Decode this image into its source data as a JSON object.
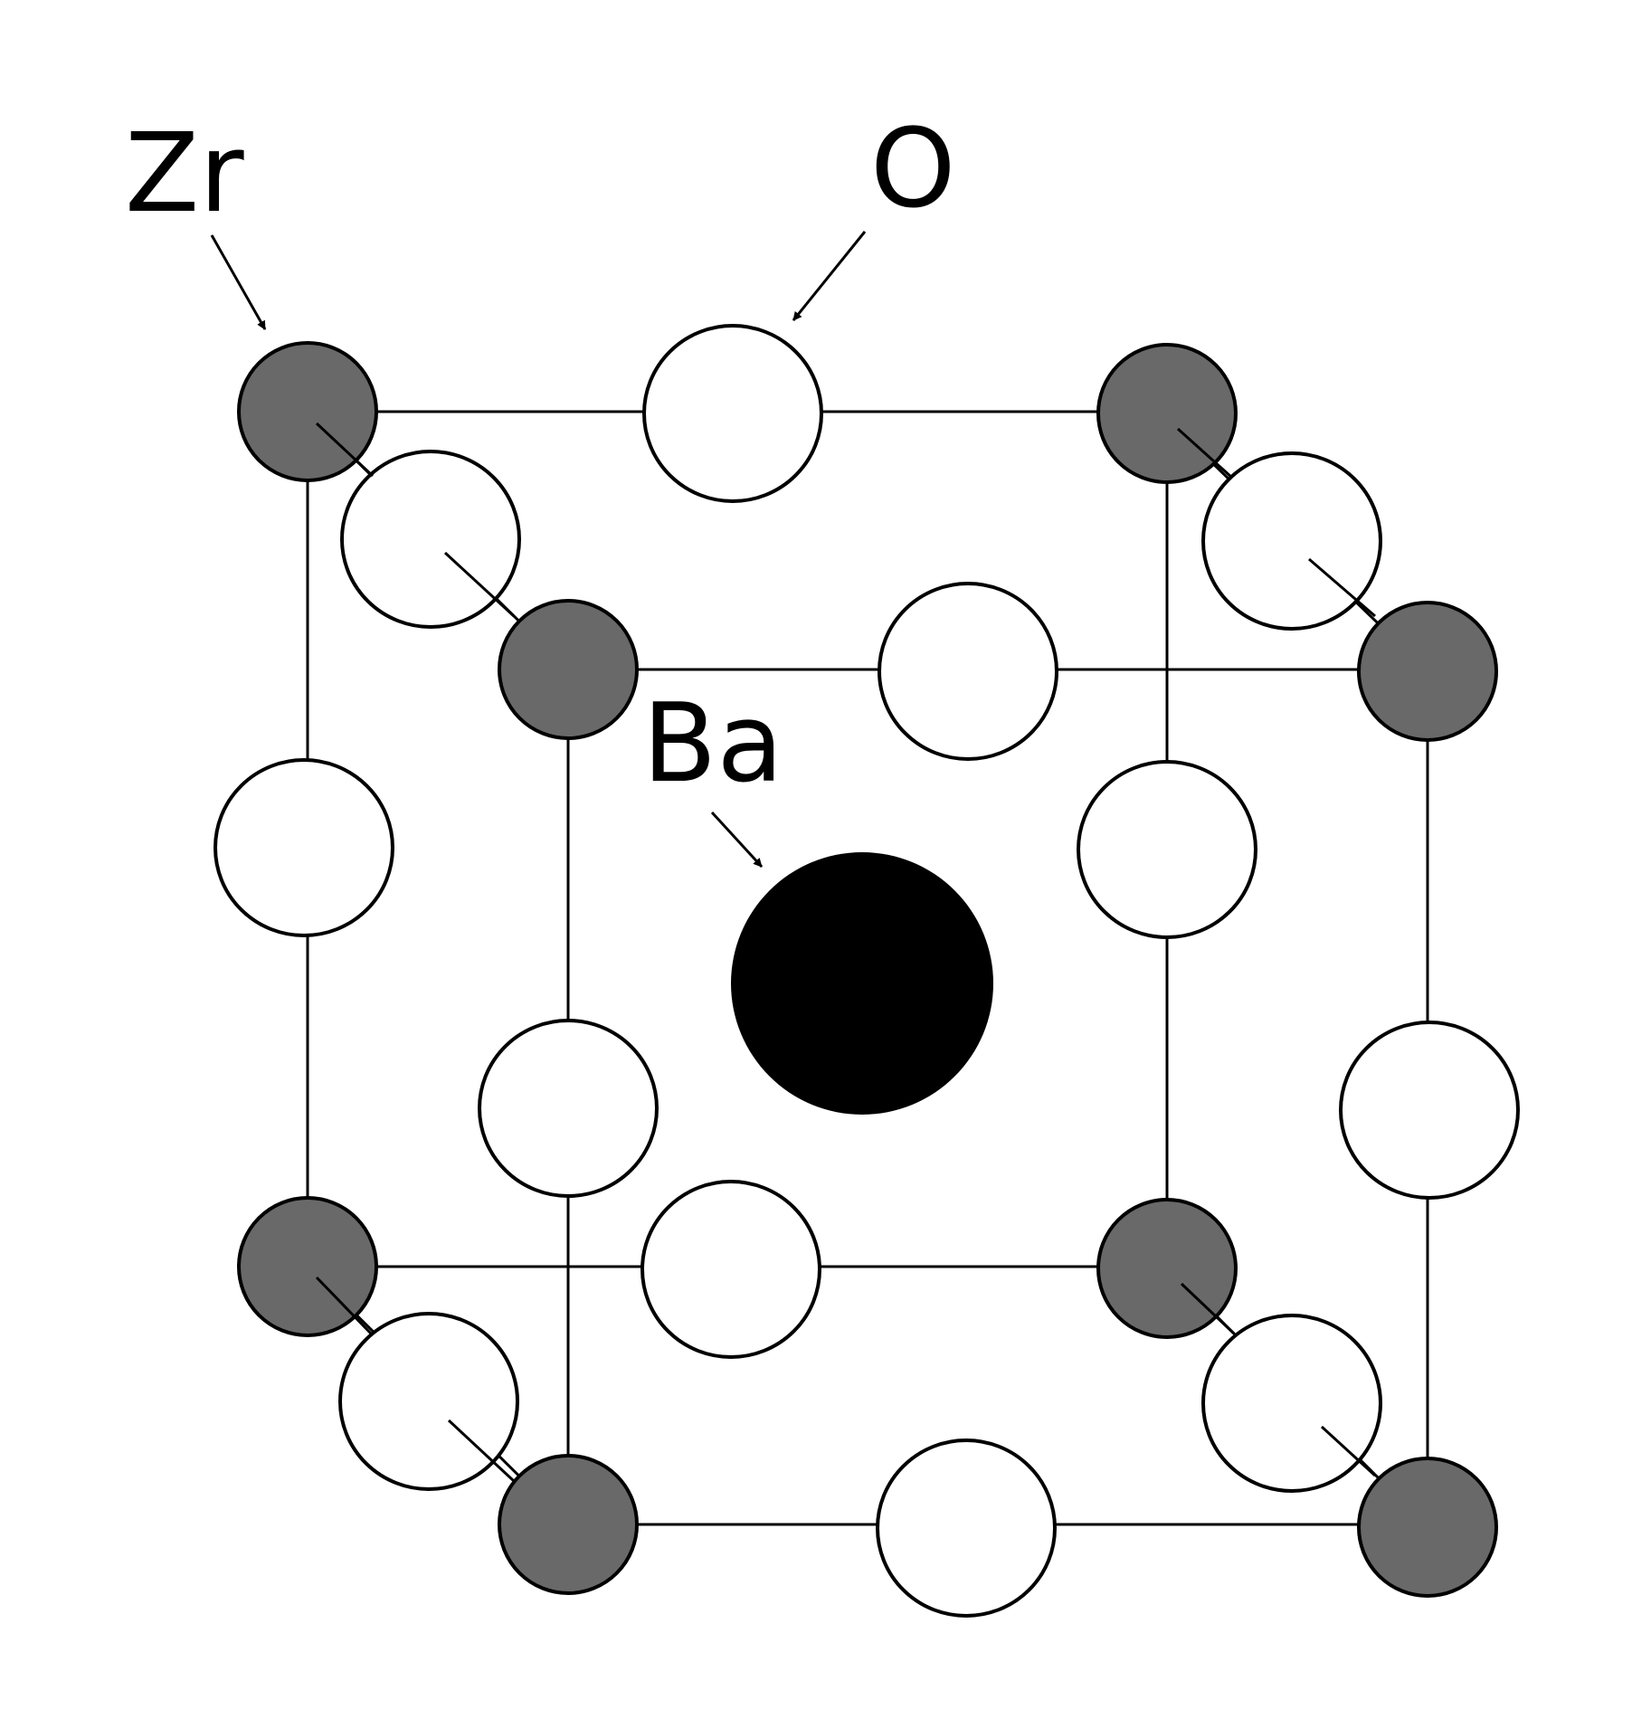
{
  "labels": {
    "zr": "Zr",
    "o": "O",
    "ba": "Ba"
  },
  "colors": {
    "zr_fill": "#696969",
    "o_fill": "#ffffff",
    "ba_fill": "#000000",
    "stroke": "#000000"
  }
}
